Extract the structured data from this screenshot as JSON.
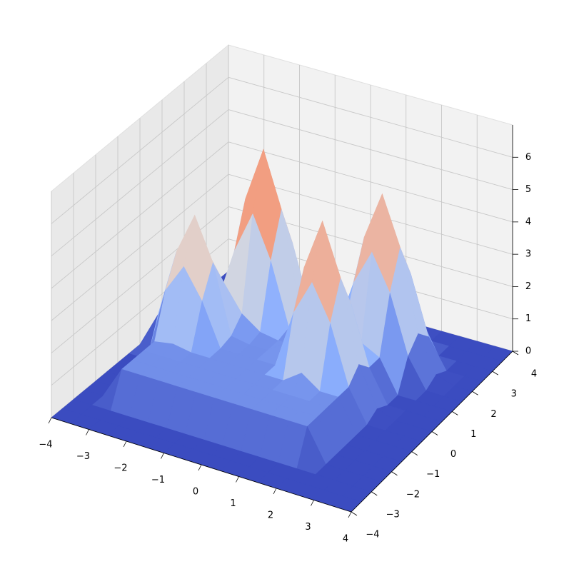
{
  "chart_data": {
    "type": "surface",
    "cmap": "coolwarm",
    "grid": true,
    "xlim": [
      -4,
      4
    ],
    "ylim": [
      -4,
      4
    ],
    "zlim": [
      0,
      7
    ],
    "xticks": [
      {
        "value": -4,
        "label": "−4"
      },
      {
        "value": -3,
        "label": "−3"
      },
      {
        "value": -2,
        "label": "−2"
      },
      {
        "value": -1,
        "label": "−1"
      },
      0,
      1,
      2,
      3,
      4
    ],
    "yticks": [
      {
        "value": -4,
        "label": "−4"
      },
      {
        "value": -3,
        "label": "−3"
      },
      {
        "value": -2,
        "label": "−2"
      },
      {
        "value": -1,
        "label": "−1"
      },
      0,
      1,
      2,
      3,
      4
    ],
    "zticks": [
      0,
      1,
      2,
      3,
      4,
      5,
      6
    ],
    "x": [
      -4,
      -3.5,
      -3,
      -2.5,
      -2,
      -1.5,
      -1,
      -0.5,
      0,
      0.5,
      1,
      1.5,
      2,
      2.5,
      3,
      3.5,
      4
    ],
    "y": [
      -4,
      -3.5,
      -3,
      -2.5,
      -2,
      -1.5,
      -1,
      -0.5,
      0,
      0.5,
      1,
      1.5,
      2,
      2.5,
      3,
      3.5,
      4
    ],
    "z": [
      [
        0,
        0,
        0,
        0,
        0,
        0,
        0,
        0,
        0,
        0,
        0,
        0,
        0,
        0,
        0,
        0,
        0
      ],
      [
        0,
        0,
        0,
        0,
        0,
        0,
        0,
        0,
        0,
        0,
        0,
        0,
        0,
        0,
        0,
        0,
        0
      ],
      [
        0,
        0,
        0,
        0,
        0,
        0,
        0,
        0,
        0,
        0,
        0,
        0,
        0,
        0,
        0,
        0,
        0
      ],
      [
        0,
        0,
        1,
        1,
        1,
        1,
        1,
        1,
        1,
        1,
        1,
        1,
        1,
        0,
        0,
        0,
        0
      ],
      [
        0,
        0,
        1,
        1,
        1,
        1,
        1,
        1,
        1,
        1,
        1,
        1,
        1,
        0,
        0,
        0,
        0
      ],
      [
        0,
        0,
        1,
        1,
        1,
        1,
        1,
        1,
        1,
        1,
        1,
        1,
        1,
        0,
        0,
        0,
        0
      ],
      [
        0,
        0,
        1,
        1.1,
        1,
        1,
        1,
        1,
        1,
        1,
        1.4,
        1,
        1,
        0,
        0,
        0,
        0
      ],
      [
        0,
        0,
        2.3,
        3.2,
        2.3,
        1,
        1,
        1,
        1,
        2.8,
        3.9,
        2.8,
        1,
        0,
        0,
        0,
        0
      ],
      [
        0,
        1.1,
        3.2,
        4.5,
        3.2,
        1.1,
        1,
        1,
        1.4,
        3.9,
        5.5,
        3.9,
        1.4,
        0.2,
        0,
        0,
        0
      ],
      [
        0,
        0.8,
        2.3,
        3.2,
        2.3,
        1.5,
        1.1,
        1,
        1,
        2.8,
        3.9,
        2.8,
        1,
        0,
        0,
        0,
        0
      ],
      [
        0,
        0,
        1,
        1.1,
        3,
        4.3,
        3,
        1.1,
        1,
        1,
        1.4,
        1.3,
        1,
        0,
        0,
        0,
        0
      ],
      [
        0,
        0,
        1,
        1.5,
        4.3,
        6,
        4.3,
        1.5,
        1,
        1,
        2.7,
        3.8,
        2.7,
        0.9,
        0,
        0,
        0
      ],
      [
        0,
        0,
        1,
        1.1,
        3,
        4.3,
        3,
        1.1,
        1,
        1.3,
        3.8,
        5.3,
        3.8,
        1.3,
        0.2,
        0,
        0
      ],
      [
        0,
        0,
        1,
        1,
        1.1,
        1.5,
        1.1,
        1,
        1,
        1,
        2.7,
        3.8,
        2.7,
        0.9,
        0,
        0,
        0
      ],
      [
        0,
        0,
        0,
        0,
        0,
        0.3,
        0,
        0,
        0,
        0,
        1,
        1.3,
        1,
        0,
        0,
        0,
        0
      ],
      [
        0,
        0,
        0,
        0,
        0,
        0,
        0,
        0,
        0,
        0,
        0,
        0.2,
        0,
        0,
        0,
        0,
        0
      ],
      [
        0,
        0,
        0,
        0,
        0,
        0,
        0,
        0,
        0,
        0,
        0,
        0,
        0,
        0,
        0,
        0,
        0
      ]
    ]
  }
}
